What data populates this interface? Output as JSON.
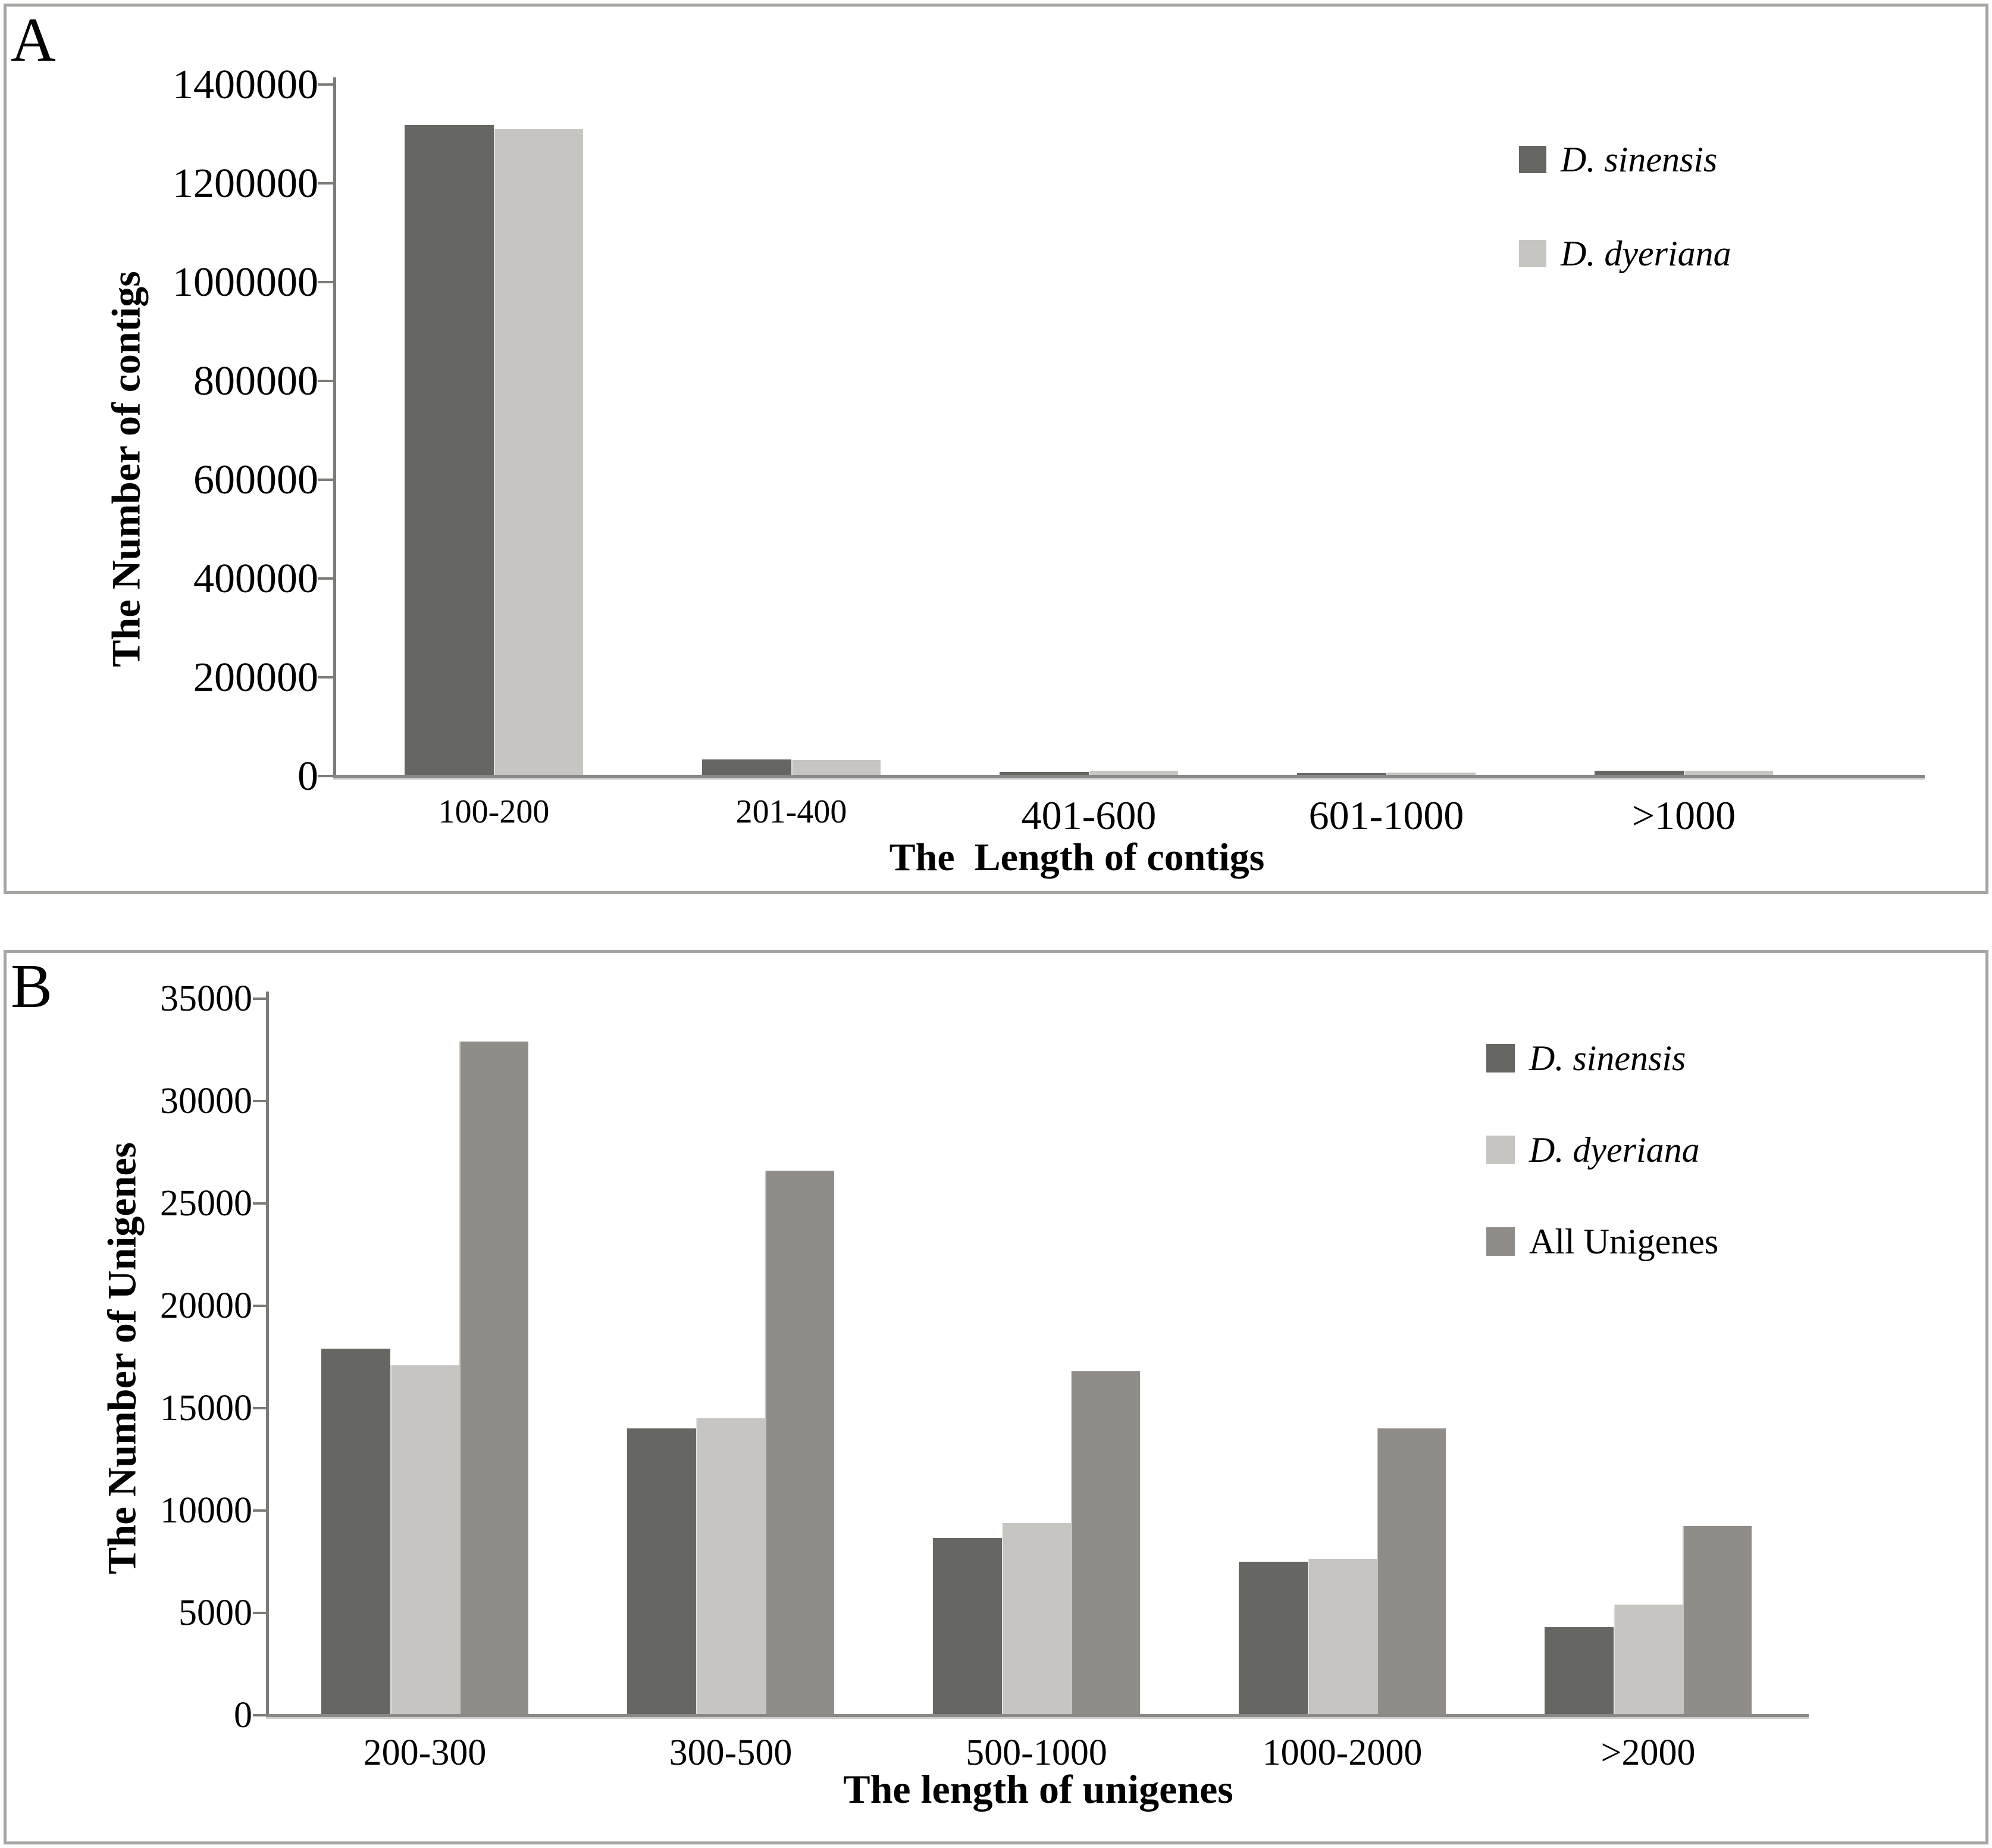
{
  "chart_data": [
    {
      "type": "bar",
      "panel_letter": "A",
      "title": "",
      "xlabel": "The  Length of contigs",
      "ylabel": "The Number of contigs",
      "categories": [
        "100-200",
        "201-400",
        "401-600",
        "601-1000",
        ">1000"
      ],
      "series": [
        {
          "name": "D. sinensis",
          "color": "#666662",
          "italic": true,
          "values": [
            1318000,
            33500,
            9000,
            5500,
            11000
          ]
        },
        {
          "name": "D. dyeriana",
          "color": "#c6c5c2",
          "italic": true,
          "values": [
            1310000,
            32000,
            11000,
            7000,
            11200
          ]
        }
      ],
      "ylim": [
        0,
        1400000
      ],
      "ytick_step": 200000,
      "ytick_labels": [
        "0",
        "200000",
        "400000",
        "600000",
        "800000",
        "1000000",
        "1200000",
        "1400000"
      ],
      "legend_position": "top-right",
      "grid": false
    },
    {
      "type": "bar",
      "panel_letter": "B",
      "title": "",
      "xlabel": "The length of unigenes",
      "ylabel": "The Number of Unigenes",
      "categories": [
        "200-300",
        "300-500",
        "500-1000",
        "1000-2000",
        ">2000"
      ],
      "series": [
        {
          "name": "D. sinensis",
          "color": "#666662",
          "italic": true,
          "values": [
            17900,
            14000,
            8650,
            7500,
            4300
          ]
        },
        {
          "name": "D. dyeriana",
          "color": "#c6c5c2",
          "italic": true,
          "values": [
            17100,
            14500,
            9400,
            7650,
            5400
          ]
        },
        {
          "name": "All Unigenes",
          "color": "#908c88",
          "italic": false,
          "values": [
            32900,
            26600,
            16800,
            14000,
            9250
          ]
        }
      ],
      "ylim": [
        0,
        35000
      ],
      "ytick_step": 5000,
      "ytick_labels": [
        "0",
        "5000",
        "10000",
        "15000",
        "20000",
        "25000",
        "30000",
        "35000"
      ],
      "legend_position": "top-right",
      "grid": false
    }
  ],
  "colors": {
    "panel_border": "#a7a5a2",
    "axis_line": "#7d7b78",
    "baseline": "#8b8987",
    "text": "#000000",
    "background": "#ffffff"
  }
}
